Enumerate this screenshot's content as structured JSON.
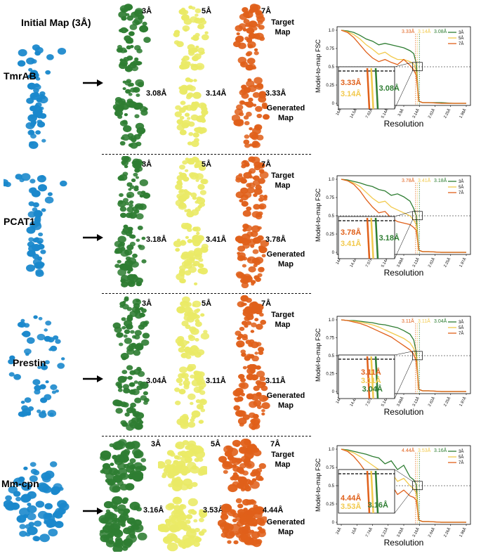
{
  "figure": {
    "initial_map_title": "Initial Map (3Å)",
    "target_label": "Target\nMap",
    "generated_label": "Generated\nMap",
    "colors": {
      "green": "#2e7d32",
      "yellow": "#eaea66",
      "orange": "#e0601a",
      "blue": "#1a88cc"
    }
  },
  "rows": [
    {
      "protein": "TmrAB",
      "target_res": [
        "3Å",
        "5Å",
        "7Å"
      ],
      "generated_res": [
        "3.08Å",
        "3.14Å",
        "3.33Å"
      ]
    },
    {
      "protein": "PCAT1",
      "target_res": [
        "3Å",
        "5Å",
        "7Å"
      ],
      "generated_res": [
        "3.18Å",
        "3.41Å",
        "3.78Å"
      ]
    },
    {
      "protein": "Prestin",
      "target_res": [
        "3Å",
        "5Å",
        "7Å"
      ],
      "generated_res": [
        "3.04Å",
        "3.11Å",
        "3.11Å"
      ]
    },
    {
      "protein": "Mm-cpn",
      "target_res": [
        "3Å",
        "5Å",
        "7Å"
      ],
      "generated_res": [
        "3.16Å",
        "3.53Å",
        "4.44Å"
      ]
    }
  ],
  "chart_data": [
    {
      "type": "line",
      "ylabel": "Model-to-map FSC",
      "xlabel": "Resolution",
      "ylim": [
        0,
        1.0
      ],
      "yticks": [
        "0",
        "0.25",
        "0.5",
        "0.75",
        "1.0"
      ],
      "xticks": [
        "16Å",
        "14.5Å",
        "7.62Å",
        "5.14Å",
        "3.9Å",
        "3.14Å",
        "2.62Å",
        "2.25Å",
        "1.98Å"
      ],
      "threshold": 0.5,
      "legend": [
        "3Å",
        "5Å",
        "7Å"
      ],
      "legend_placement": "top-right",
      "crossings": [
        "3.33Å",
        "3.14Å",
        "3.08Å"
      ],
      "inset_labels": [
        "3.33Å",
        "3.14Å",
        "3.08Å"
      ],
      "series": [
        {
          "name": "3Å",
          "color": "#2e7d32",
          "x": [
            0,
            0.05,
            0.1,
            0.15,
            0.2,
            0.25,
            0.3,
            0.35,
            0.4,
            0.45,
            0.5,
            0.55,
            0.58,
            0.6,
            0.62,
            0.65,
            0.7,
            0.8,
            0.9,
            1.0
          ],
          "y": [
            1,
            0.99,
            0.97,
            0.93,
            0.88,
            0.85,
            0.8,
            0.82,
            0.8,
            0.78,
            0.76,
            0.72,
            0.68,
            0.55,
            0.03,
            0.01,
            0.01,
            0.01,
            0.0,
            0.0
          ]
        },
        {
          "name": "5Å",
          "color": "#f2c94c",
          "x": [
            0,
            0.05,
            0.1,
            0.15,
            0.2,
            0.25,
            0.3,
            0.35,
            0.4,
            0.45,
            0.5,
            0.55,
            0.58,
            0.6,
            0.62,
            0.65,
            0.7,
            0.8,
            0.9,
            1.0
          ],
          "y": [
            1,
            0.98,
            0.94,
            0.88,
            0.8,
            0.74,
            0.67,
            0.7,
            0.64,
            0.6,
            0.6,
            0.57,
            0.54,
            0.44,
            0.03,
            0.01,
            0.01,
            0.0,
            0.0,
            0.0
          ]
        },
        {
          "name": "7Å",
          "color": "#e0601a",
          "x": [
            0,
            0.05,
            0.1,
            0.15,
            0.2,
            0.25,
            0.3,
            0.35,
            0.4,
            0.45,
            0.5,
            0.55,
            0.58,
            0.6,
            0.62,
            0.65,
            0.7,
            0.8,
            0.9,
            1.0
          ],
          "y": [
            1,
            0.97,
            0.9,
            0.8,
            0.7,
            0.62,
            0.57,
            0.6,
            0.56,
            0.53,
            0.6,
            0.52,
            0.46,
            0.38,
            0.03,
            0.01,
            0.01,
            0.0,
            0.0,
            0.0
          ]
        }
      ]
    },
    {
      "type": "line",
      "ylabel": "Model-to-map FSC",
      "xlabel": "Resolution",
      "ylim": [
        0,
        1.0
      ],
      "yticks": [
        "0",
        "0.25",
        "0.5",
        "0.75",
        "1.0"
      ],
      "xticks": [
        "14Å",
        "14.4Å",
        "7.57Å",
        "5.14Å",
        "3.89Å",
        "3.13Å",
        "2.62Å",
        "2.25Å",
        "1.97Å"
      ],
      "threshold": 0.5,
      "legend": [
        "3Å",
        "5Å",
        "7Å"
      ],
      "legend_placement": "top-right",
      "crossings": [
        "3.78Å",
        "3.41Å",
        "3.18Å"
      ],
      "inset_labels": [
        "3.78Å",
        "3.41Å",
        "3.18Å"
      ],
      "series": [
        {
          "name": "3Å",
          "color": "#2e7d32",
          "x": [
            0,
            0.05,
            0.1,
            0.15,
            0.2,
            0.25,
            0.3,
            0.35,
            0.4,
            0.45,
            0.5,
            0.55,
            0.58,
            0.6,
            0.62,
            0.65,
            0.7,
            0.8,
            0.9,
            1.0
          ],
          "y": [
            1,
            0.99,
            0.97,
            0.95,
            0.92,
            0.9,
            0.86,
            0.84,
            0.78,
            0.8,
            0.76,
            0.7,
            0.6,
            0.5,
            0.03,
            0.01,
            0.01,
            0.0,
            0.0,
            0.0
          ]
        },
        {
          "name": "5Å",
          "color": "#f2c94c",
          "x": [
            0,
            0.05,
            0.1,
            0.15,
            0.2,
            0.25,
            0.3,
            0.35,
            0.4,
            0.45,
            0.5,
            0.55,
            0.58,
            0.6,
            0.62,
            0.65,
            0.7,
            0.8,
            0.9,
            1.0
          ],
          "y": [
            1,
            0.98,
            0.95,
            0.9,
            0.82,
            0.74,
            0.68,
            0.7,
            0.62,
            0.58,
            0.54,
            0.5,
            0.44,
            0.38,
            0.03,
            0.01,
            0.01,
            0.0,
            0.0,
            0.0
          ]
        },
        {
          "name": "7Å",
          "color": "#e0601a",
          "x": [
            0,
            0.05,
            0.1,
            0.15,
            0.2,
            0.25,
            0.3,
            0.35,
            0.4,
            0.45,
            0.5,
            0.55,
            0.58,
            0.6,
            0.62,
            0.65,
            0.7,
            0.8,
            0.9,
            1.0
          ],
          "y": [
            1,
            0.98,
            0.93,
            0.84,
            0.72,
            0.62,
            0.54,
            0.56,
            0.47,
            0.42,
            0.4,
            0.38,
            0.34,
            0.3,
            0.03,
            0.01,
            0.01,
            0.0,
            0.0,
            0.0
          ]
        }
      ]
    },
    {
      "type": "line",
      "ylabel": "Model-to-map FSC",
      "xlabel": "Resolution",
      "ylim": [
        0,
        1.0
      ],
      "yticks": [
        "0",
        "0.25",
        "0.5",
        "0.75",
        "1.0"
      ],
      "xticks": [
        "14Å",
        "14.4Å",
        "7.57Å",
        "5.14Å",
        "3.89Å",
        "3.13Å",
        "2.62Å",
        "2.25Å",
        "1.97Å"
      ],
      "threshold": 0.5,
      "legend": [
        "3Å",
        "5Å",
        "7Å"
      ],
      "legend_placement": "top-right",
      "crossings": [
        "3.11Å",
        "3.11Å",
        "3.04Å"
      ],
      "inset_labels": [
        "3.11Å",
        "3.11Å",
        "3.04Å"
      ],
      "series": [
        {
          "name": "3Å",
          "color": "#2e7d32",
          "x": [
            0,
            0.05,
            0.1,
            0.15,
            0.2,
            0.25,
            0.3,
            0.35,
            0.4,
            0.45,
            0.5,
            0.55,
            0.58,
            0.6,
            0.62,
            0.65,
            0.7,
            0.8,
            0.9,
            1.0
          ],
          "y": [
            1,
            0.99,
            0.99,
            0.98,
            0.97,
            0.96,
            0.94,
            0.93,
            0.91,
            0.89,
            0.85,
            0.8,
            0.72,
            0.55,
            0.03,
            0.01,
            0.01,
            0.0,
            0.0,
            0.0
          ]
        },
        {
          "name": "5Å",
          "color": "#f2c94c",
          "x": [
            0,
            0.05,
            0.1,
            0.15,
            0.2,
            0.25,
            0.3,
            0.35,
            0.4,
            0.45,
            0.5,
            0.55,
            0.58,
            0.6,
            0.62,
            0.65,
            0.7,
            0.8,
            0.9,
            1.0
          ],
          "y": [
            1,
            0.99,
            0.98,
            0.97,
            0.95,
            0.93,
            0.9,
            0.86,
            0.82,
            0.78,
            0.74,
            0.68,
            0.6,
            0.48,
            0.03,
            0.01,
            0.01,
            0.0,
            0.0,
            0.0
          ]
        },
        {
          "name": "7Å",
          "color": "#e0601a",
          "x": [
            0,
            0.05,
            0.1,
            0.15,
            0.2,
            0.25,
            0.3,
            0.35,
            0.4,
            0.45,
            0.5,
            0.55,
            0.58,
            0.6,
            0.62,
            0.65,
            0.7,
            0.8,
            0.9,
            1.0
          ],
          "y": [
            1,
            0.99,
            0.97,
            0.95,
            0.92,
            0.88,
            0.84,
            0.8,
            0.76,
            0.7,
            0.64,
            0.58,
            0.52,
            0.42,
            0.03,
            0.01,
            0.01,
            0.0,
            0.0,
            0.0
          ]
        }
      ]
    },
    {
      "type": "line",
      "ylabel": "Model-to-map FSC",
      "xlabel": "Resolution",
      "ylim": [
        0,
        1.0
      ],
      "yticks": [
        "0",
        "0.25",
        "0.5",
        "0.75",
        "1.0"
      ],
      "xticks": [
        "24Å",
        "15Å",
        "7.74Å",
        "5.22Å",
        "3.93Å",
        "3.16Å",
        "2.64Å",
        "2.26Å",
        "1.98Å"
      ],
      "threshold": 0.5,
      "legend": [
        "3Å",
        "5Å",
        "7Å"
      ],
      "legend_placement": "top-right",
      "crossings": [
        "4.44Å",
        "3.53Å",
        "3.16Å"
      ],
      "inset_labels": [
        "4.44Å",
        "3.53Å",
        "3.16Å"
      ],
      "series": [
        {
          "name": "3Å",
          "color": "#2e7d32",
          "x": [
            0,
            0.05,
            0.1,
            0.15,
            0.2,
            0.25,
            0.3,
            0.35,
            0.4,
            0.45,
            0.5,
            0.55,
            0.58,
            0.6,
            0.62,
            0.65,
            0.7,
            0.8,
            0.9,
            1.0
          ],
          "y": [
            1,
            0.99,
            0.97,
            0.95,
            0.93,
            0.9,
            0.88,
            0.8,
            0.84,
            0.72,
            0.78,
            0.62,
            0.58,
            0.52,
            0.03,
            0.01,
            0.01,
            0.0,
            0.0,
            0.0
          ]
        },
        {
          "name": "5Å",
          "color": "#f2c94c",
          "x": [
            0,
            0.05,
            0.1,
            0.15,
            0.2,
            0.25,
            0.3,
            0.35,
            0.4,
            0.45,
            0.5,
            0.55,
            0.58,
            0.6,
            0.62,
            0.65,
            0.7,
            0.8,
            0.9,
            1.0
          ],
          "y": [
            1,
            0.98,
            0.95,
            0.9,
            0.84,
            0.78,
            0.72,
            0.62,
            0.68,
            0.56,
            0.6,
            0.5,
            0.46,
            0.4,
            0.03,
            0.01,
            0.01,
            0.0,
            0.0,
            0.0
          ]
        },
        {
          "name": "7Å",
          "color": "#e0601a",
          "x": [
            0,
            0.05,
            0.1,
            0.15,
            0.2,
            0.25,
            0.3,
            0.35,
            0.4,
            0.45,
            0.5,
            0.55,
            0.58,
            0.6,
            0.62,
            0.65,
            0.7,
            0.8,
            0.9,
            1.0
          ],
          "y": [
            1,
            0.97,
            0.9,
            0.8,
            0.68,
            0.58,
            0.5,
            0.42,
            0.52,
            0.38,
            0.44,
            0.36,
            0.34,
            0.3,
            0.03,
            0.01,
            0.01,
            0.0,
            0.0,
            0.0
          ]
        }
      ]
    }
  ]
}
